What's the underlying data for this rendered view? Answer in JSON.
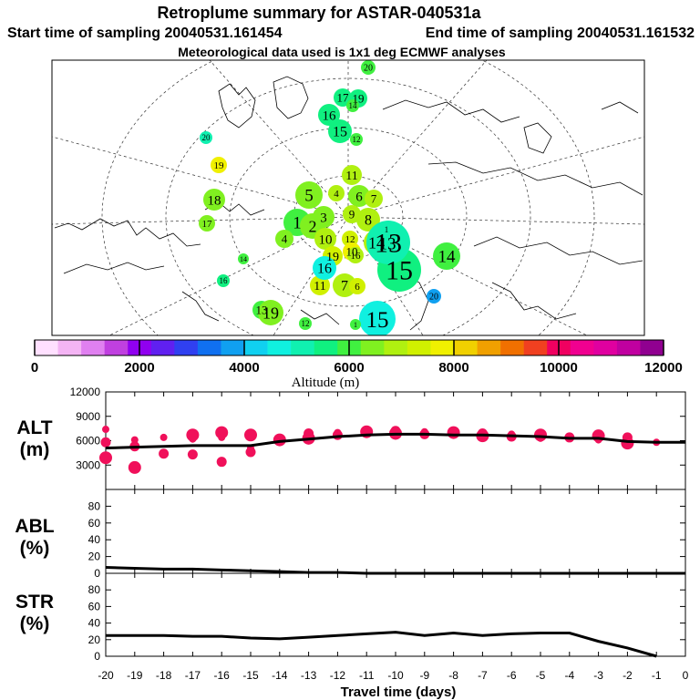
{
  "titles": {
    "main": "Retroplume summary for ASTAR-040531a",
    "start": "Start time of sampling 20040531.161454",
    "end": "End time of sampling 20040531.161532",
    "met": "Meteorological data used is 1x1 deg ECMWF analyses"
  },
  "colorbar": {
    "label": "Altitude (m)",
    "ticks": [
      "0",
      "2000",
      "4000",
      "6000",
      "8000",
      "10000",
      "12000"
    ],
    "colors": [
      "#ffe0ff",
      "#f4b4f4",
      "#e080f0",
      "#c040e0",
      "#9000f0",
      "#6020f0",
      "#3040f0",
      "#1070f0",
      "#10a0f0",
      "#10d0f0",
      "#10f0e0",
      "#10f0b0",
      "#10f080",
      "#40f040",
      "#80f020",
      "#b0f010",
      "#d0f000",
      "#f0f000",
      "#f0d000",
      "#f0a000",
      "#f07000",
      "#f04020",
      "#f00060",
      "#f00090",
      "#e000a0",
      "#c000a0",
      "#900090"
    ]
  },
  "map": {
    "circles": [
      {
        "label": "20",
        "alt": 5800
      },
      {
        "label": "17",
        "alt": 5600
      },
      {
        "label": "19",
        "alt": 5700
      },
      {
        "label": "16",
        "alt": 5500
      },
      {
        "label": "14",
        "alt": 5900
      },
      {
        "label": "15",
        "alt": 5600
      },
      {
        "label": "12",
        "alt": 5900
      },
      {
        "label": "20",
        "alt": 5200
      },
      {
        "label": "19",
        "alt": 7700
      },
      {
        "label": "18",
        "alt": 6600
      },
      {
        "label": "17",
        "alt": 6400
      },
      {
        "label": "11",
        "alt": 6800
      },
      {
        "label": "5",
        "alt": 6600
      },
      {
        "label": "4",
        "alt": 6800
      },
      {
        "label": "6",
        "alt": 6600
      },
      {
        "label": "7",
        "alt": 6700
      },
      {
        "label": "8",
        "alt": 6700
      },
      {
        "label": "1",
        "alt": 6100
      },
      {
        "label": "2",
        "alt": 6300
      },
      {
        "label": "3",
        "alt": 6400
      },
      {
        "label": "9",
        "alt": 6800
      },
      {
        "label": "10",
        "alt": 6900
      },
      {
        "label": "4",
        "alt": 6500
      },
      {
        "label": "12",
        "alt": 7200
      },
      {
        "label": "14",
        "alt": 7000
      },
      {
        "label": "13",
        "alt": 7300
      },
      {
        "label": "1",
        "alt": 7600
      },
      {
        "label": "19",
        "alt": 7200
      },
      {
        "label": "10",
        "alt": 7700
      },
      {
        "label": "11",
        "alt": 7300
      },
      {
        "label": "7",
        "alt": 7000
      },
      {
        "label": "6",
        "alt": 7400
      },
      {
        "label": "16",
        "alt": 6800
      },
      {
        "label": "14",
        "alt": 6200
      },
      {
        "label": "15",
        "alt": 5400
      },
      {
        "label": "13",
        "alt": 4900
      },
      {
        "label": "16",
        "alt": 4800
      },
      {
        "label": "20",
        "alt": 3900
      },
      {
        "label": "14",
        "alt": 5800
      },
      {
        "label": "16",
        "alt": 5700
      },
      {
        "label": "13",
        "alt": 6200
      },
      {
        "label": "19",
        "alt": 6300
      },
      {
        "label": "12",
        "alt": 5900
      },
      {
        "label": "15",
        "alt": 4700
      },
      {
        "label": "1",
        "alt": 6200
      }
    ]
  },
  "labels": {
    "alt_panel": [
      "ALT",
      "(m)"
    ],
    "abl_panel": [
      "ABL",
      "(%)"
    ],
    "str_panel": [
      "STR",
      "(%)"
    ],
    "xlabel": "Travel time (days)"
  },
  "chart_data": [
    {
      "type": "line",
      "panel": "ALT",
      "ylabel": "ALT (m)",
      "ylim": [
        0,
        12000
      ],
      "yticks": [
        "3000",
        "6000",
        "9000",
        "12000"
      ],
      "x": [
        -20,
        -19,
        -18,
        -17,
        -16,
        -15,
        -14,
        -13,
        -12,
        -11,
        -10,
        -9,
        -8,
        -7,
        -6,
        -5,
        -4,
        -3,
        -2,
        -1,
        0
      ],
      "values": [
        5100,
        5200,
        5300,
        5400,
        5400,
        5400,
        5900,
        6200,
        6500,
        6700,
        6800,
        6800,
        6700,
        6700,
        6600,
        6500,
        6300,
        6300,
        5900,
        5800,
        5800
      ],
      "dots": [
        {
          "x": -20,
          "y": 7400
        },
        {
          "x": -20,
          "y": 5800
        },
        {
          "x": -20,
          "y": 3900
        },
        {
          "x": -19,
          "y": 6100
        },
        {
          "x": -19,
          "y": 5300
        },
        {
          "x": -19,
          "y": 2700
        },
        {
          "x": -18,
          "y": 6400
        },
        {
          "x": -18,
          "y": 4400
        },
        {
          "x": -17,
          "y": 6700
        },
        {
          "x": -17,
          "y": 6200
        },
        {
          "x": -17,
          "y": 4300
        },
        {
          "x": -16,
          "y": 7000
        },
        {
          "x": -16,
          "y": 6400
        },
        {
          "x": -16,
          "y": 3400
        },
        {
          "x": -15,
          "y": 6700
        },
        {
          "x": -15,
          "y": 5100
        },
        {
          "x": -15,
          "y": 4600
        },
        {
          "x": -14,
          "y": 6100
        },
        {
          "x": -14,
          "y": 5900
        },
        {
          "x": -13,
          "y": 6900
        },
        {
          "x": -13,
          "y": 6300
        },
        {
          "x": -12,
          "y": 7000
        },
        {
          "x": -12,
          "y": 6700
        },
        {
          "x": -11,
          "y": 7100
        },
        {
          "x": -11,
          "y": 6900
        },
        {
          "x": -10,
          "y": 7200
        },
        {
          "x": -10,
          "y": 6900
        },
        {
          "x": -9,
          "y": 7100
        },
        {
          "x": -9,
          "y": 6800
        },
        {
          "x": -8,
          "y": 7000
        },
        {
          "x": -8,
          "y": 6800
        },
        {
          "x": -7,
          "y": 6900
        },
        {
          "x": -7,
          "y": 6600
        },
        {
          "x": -6,
          "y": 6800
        },
        {
          "x": -6,
          "y": 6500
        },
        {
          "x": -5,
          "y": 6700
        },
        {
          "x": -5,
          "y": 6300
        },
        {
          "x": -4,
          "y": 6400
        },
        {
          "x": -3,
          "y": 6600
        },
        {
          "x": -3,
          "y": 6100
        },
        {
          "x": -2,
          "y": 6400
        },
        {
          "x": -2,
          "y": 5700
        },
        {
          "x": -1,
          "y": 5800
        }
      ]
    },
    {
      "type": "line",
      "panel": "ABL",
      "ylabel": "ABL (%)",
      "ylim": [
        0,
        100
      ],
      "yticks": [
        "0",
        "20",
        "40",
        "60",
        "80"
      ],
      "x": [
        -20,
        -19,
        -18,
        -17,
        -16,
        -15,
        -14,
        -13,
        -12,
        -11,
        -10,
        -9,
        -8,
        -7,
        -6,
        -5,
        -4,
        -3,
        -2,
        -1,
        0
      ],
      "values": [
        7,
        6,
        5,
        5,
        4,
        3,
        2,
        1,
        1,
        0,
        0,
        0,
        0,
        0,
        0,
        0,
        0,
        0,
        0,
        0,
        0
      ]
    },
    {
      "type": "line",
      "panel": "STR",
      "ylabel": "STR (%)",
      "ylim": [
        0,
        100
      ],
      "yticks": [
        "0",
        "20",
        "40",
        "60",
        "80"
      ],
      "x": [
        -20,
        -19,
        -18,
        -17,
        -16,
        -15,
        -14,
        -13,
        -12,
        -11,
        -10,
        -9,
        -8,
        -7,
        -6,
        -5,
        -4,
        -3,
        -2,
        -1
      ],
      "values": [
        25,
        25,
        25,
        24,
        24,
        22,
        21,
        23,
        25,
        27,
        29,
        25,
        28,
        25,
        27,
        28,
        28,
        18,
        10,
        0
      ],
      "xlabel": "Travel time (days)",
      "xticks": [
        "-20",
        "-19",
        "-18",
        "-17",
        "-16",
        "-15",
        "-14",
        "-13",
        "-12",
        "-11",
        "-10",
        "-9",
        "-8",
        "-7",
        "-6",
        "-5",
        "-4",
        "-3",
        "-2",
        "-1",
        "0"
      ]
    }
  ]
}
